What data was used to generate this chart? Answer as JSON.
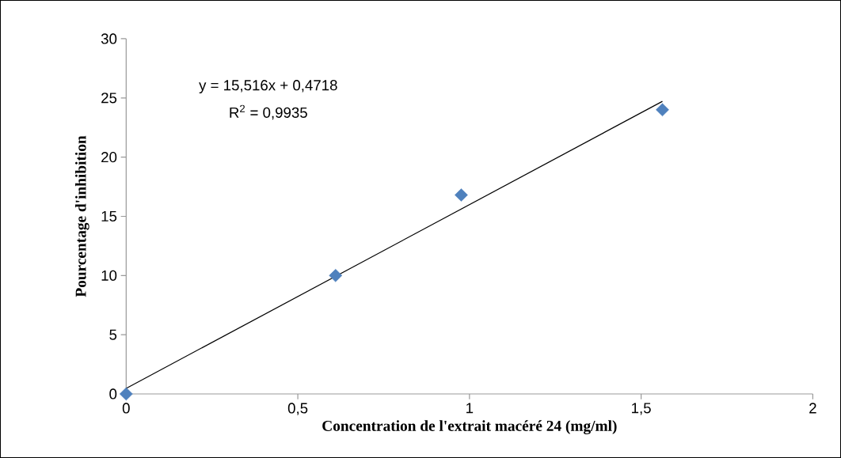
{
  "chart_data": {
    "type": "scatter",
    "xlabel": "Concentration de l'extrait macéré 24 (mg/ml)",
    "ylabel": "Pourcentage d'inhibition",
    "xlim": [
      0,
      2
    ],
    "ylim": [
      0,
      30
    ],
    "xticks": [
      0,
      {
        "value": 0.5,
        "label": "0,5"
      },
      1,
      {
        "value": 1.5,
        "label": "1,5"
      },
      2
    ],
    "yticks": [
      0,
      5,
      10,
      15,
      20,
      25,
      30
    ],
    "series": [
      {
        "color": "#4f81bd",
        "marker": "diamond",
        "x": [
          0,
          0.61,
          0.976,
          1.562
        ],
        "values": [
          0,
          10.0,
          16.8,
          24.0
        ]
      },
      {
        "type": "line",
        "color": "#000000",
        "marker": "none",
        "line_style": "solid",
        "x": [
          0,
          1.562
        ],
        "values": [
          0.47,
          24.71
        ]
      }
    ],
    "annotations": [
      "y = 15,516x + 0,4718",
      "R$^{2}$ = 0,9935"
    ],
    "grid": false
  }
}
